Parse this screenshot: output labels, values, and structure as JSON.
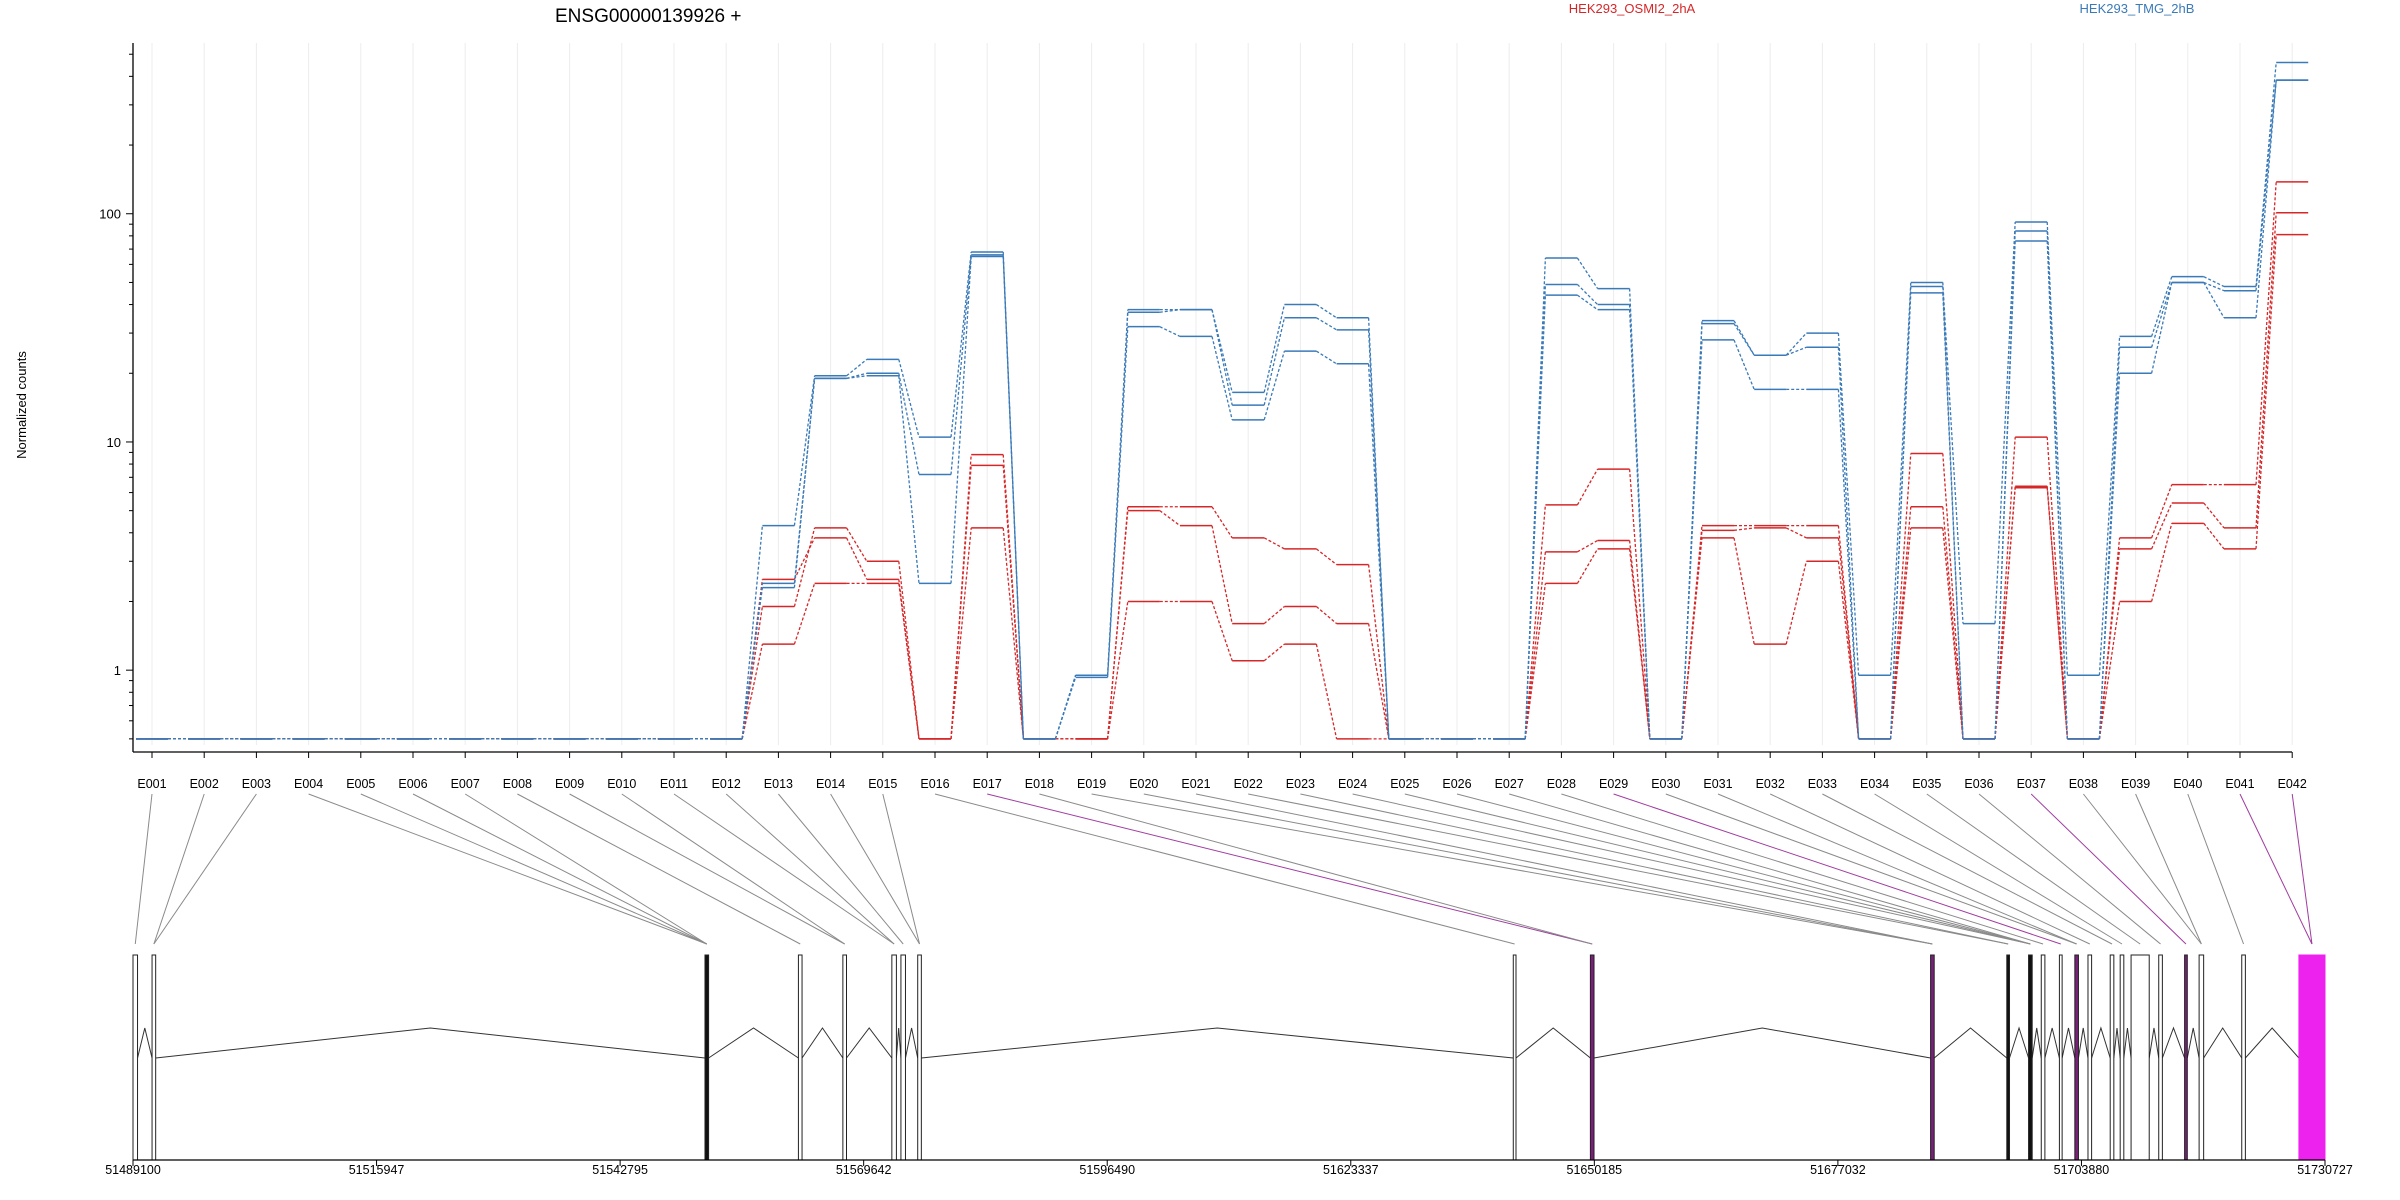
{
  "chart_data": {
    "type": "line",
    "title": "ENSG00000139926 +",
    "xlabel": "",
    "ylabel": "Normalized counts",
    "y_scale": "log",
    "ylim": [
      0.47,
      560
    ],
    "y_ticks": [
      {
        "value": 1,
        "label": "1"
      },
      {
        "value": 10,
        "label": "10"
      },
      {
        "value": 100,
        "label": "100"
      }
    ],
    "grid": "vertical",
    "legend_placement": "top",
    "colors": {
      "HEK293_OSMI2_2hA": "#d62728",
      "HEK293_TMG_2hB": "#3a7ab8",
      "highlight": "#ee22ee",
      "connector_highlight": "#a03ca0"
    },
    "categories": [
      "E001",
      "E002",
      "E003",
      "E004",
      "E005",
      "E006",
      "E007",
      "E008",
      "E009",
      "E010",
      "E011",
      "E012",
      "E013",
      "E014",
      "E015",
      "E016",
      "E017",
      "E018",
      "E019",
      "E020",
      "E021",
      "E022",
      "E023",
      "E024",
      "E025",
      "E026",
      "E027",
      "E028",
      "E029",
      "E030",
      "E031",
      "E032",
      "E033",
      "E034",
      "E035",
      "E036",
      "E037",
      "E038",
      "E039",
      "E040",
      "E041",
      "E042"
    ],
    "series": [
      {
        "name": "HEK293_OSMI2_2hA",
        "group": "HEK293_OSMI2_2hA",
        "values": [
          0.5,
          0.5,
          0.5,
          0.5,
          0.5,
          0.5,
          0.5,
          0.5,
          0.5,
          0.5,
          0.5,
          0.5,
          1.9,
          4.2,
          3.0,
          0.5,
          8.8,
          0.5,
          0.5,
          5.2,
          5.2,
          3.8,
          3.4,
          2.9,
          0.5,
          0.5,
          0.5,
          5.3,
          7.6,
          0.5,
          4.3,
          4.3,
          4.3,
          0.5,
          8.9,
          0.5,
          10.5,
          0.5,
          3.8,
          6.5,
          6.5,
          138
        ]
      },
      {
        "name": "HEK293_OSMI2_2hA",
        "group": "HEK293_OSMI2_2hA",
        "values": [
          0.5,
          0.5,
          0.5,
          0.5,
          0.5,
          0.5,
          0.5,
          0.5,
          0.5,
          0.5,
          0.5,
          0.5,
          2.5,
          3.8,
          2.5,
          0.5,
          7.9,
          0.5,
          0.5,
          5.0,
          4.3,
          1.6,
          1.9,
          1.6,
          0.5,
          0.5,
          0.5,
          3.3,
          3.7,
          0.5,
          4.1,
          4.2,
          3.8,
          0.5,
          5.2,
          0.5,
          6.4,
          0.5,
          3.4,
          5.4,
          4.2,
          101
        ]
      },
      {
        "name": "HEK293_OSMI2_2hA",
        "group": "HEK293_OSMI2_2hA",
        "values": [
          0.5,
          0.5,
          0.5,
          0.5,
          0.5,
          0.5,
          0.5,
          0.5,
          0.5,
          0.5,
          0.5,
          0.5,
          1.3,
          2.4,
          2.4,
          0.5,
          4.2,
          0.5,
          0.5,
          2.0,
          2.0,
          1.1,
          1.3,
          0.5,
          0.5,
          0.5,
          0.5,
          2.4,
          3.4,
          0.5,
          3.8,
          1.3,
          3.0,
          0.5,
          4.2,
          0.5,
          6.3,
          0.5,
          2.0,
          4.4,
          3.4,
          81
        ]
      },
      {
        "name": "HEK293_TMG_2hB",
        "group": "HEK293_TMG_2hB",
        "values": [
          0.5,
          0.5,
          0.5,
          0.5,
          0.5,
          0.5,
          0.5,
          0.5,
          0.5,
          0.5,
          0.5,
          0.5,
          4.3,
          19.5,
          23.0,
          10.5,
          68,
          0.5,
          0.95,
          38,
          38,
          16.5,
          40,
          35,
          0.5,
          0.5,
          0.5,
          64,
          47,
          0.5,
          34,
          24,
          30,
          0.95,
          50,
          1.6,
          92,
          0.95,
          29,
          53,
          48,
          460
        ]
      },
      {
        "name": "HEK293_TMG_2hB",
        "group": "HEK293_TMG_2hB",
        "values": [
          0.5,
          0.5,
          0.5,
          0.5,
          0.5,
          0.5,
          0.5,
          0.5,
          0.5,
          0.5,
          0.5,
          0.5,
          2.4,
          19.0,
          20.0,
          7.2,
          66,
          0.5,
          0.95,
          37,
          38,
          14.5,
          35,
          31,
          0.5,
          0.5,
          0.5,
          49,
          40,
          0.5,
          33,
          24,
          26,
          0.5,
          48,
          0.5,
          84,
          0.5,
          26,
          50,
          46,
          385
        ]
      },
      {
        "name": "HEK293_TMG_2hB",
        "group": "HEK293_TMG_2hB",
        "values": [
          0.5,
          0.5,
          0.5,
          0.5,
          0.5,
          0.5,
          0.5,
          0.5,
          0.5,
          0.5,
          0.5,
          0.5,
          2.3,
          19.0,
          19.5,
          2.4,
          65,
          0.5,
          0.93,
          32,
          29,
          12.5,
          25,
          22,
          0.5,
          0.5,
          0.5,
          44,
          38,
          0.5,
          28,
          17,
          17,
          0.5,
          45,
          0.5,
          76,
          0.5,
          20,
          50,
          35,
          385
        ]
      }
    ],
    "legend": [
      {
        "label": "HEK293_OSMI2_2hA"
      },
      {
        "label": "HEK293_TMG_2hB"
      }
    ],
    "exon_highlight": [
      false,
      false,
      false,
      false,
      false,
      false,
      false,
      false,
      false,
      false,
      false,
      false,
      false,
      false,
      false,
      false,
      true,
      false,
      false,
      false,
      false,
      false,
      false,
      false,
      false,
      false,
      false,
      false,
      true,
      false,
      false,
      false,
      false,
      false,
      false,
      false,
      true,
      false,
      false,
      false,
      true,
      true
    ],
    "gene_coordinate_ticks": [
      "51489100",
      "51515947",
      "51542795",
      "51569642",
      "51596490",
      "51623337",
      "51650185",
      "51677032",
      "51703880",
      "51730727"
    ],
    "gene_range": [
      51489100,
      51730727
    ],
    "gene_model_exons": [
      [
        51489100,
        51489600
      ],
      [
        51491200,
        51491600
      ],
      [
        51552150,
        51552550
      ],
      [
        51562450,
        51562850
      ],
      [
        51567350,
        51567750
      ],
      [
        51572750,
        51573250
      ],
      [
        51573750,
        51574250
      ],
      [
        51575600,
        51576000
      ],
      [
        51641250,
        51641550
      ],
      [
        51649750,
        51650150
      ],
      [
        51687250,
        51687650
      ],
      [
        51695650,
        51695950
      ],
      [
        51698050,
        51698450
      ],
      [
        51699450,
        51699850
      ],
      [
        51701450,
        51701750
      ],
      [
        51703150,
        51703550
      ],
      [
        51704600,
        51705000
      ],
      [
        51707050,
        51707450
      ],
      [
        51708150,
        51708550
      ],
      [
        51709350,
        51711350
      ],
      [
        51712400,
        51712800
      ],
      [
        51715250,
        51715550
      ],
      [
        51716850,
        51717350
      ],
      [
        51721550,
        51721950
      ],
      [
        51727850,
        51730727
      ]
    ],
    "gene_model_exon_fill": [
      "white",
      "white",
      "black",
      "white",
      "white",
      "white",
      "white",
      "white",
      "white",
      "purple",
      "purple",
      "black",
      "black",
      "white",
      "white",
      "purple",
      "white",
      "white",
      "white",
      "white",
      "white",
      "purple",
      "white",
      "white",
      "magenta"
    ],
    "exon_to_gene_map": [
      0,
      1,
      1,
      2,
      2,
      2,
      2,
      3,
      4,
      4,
      5,
      5,
      6,
      7,
      7,
      8,
      9,
      9,
      10,
      10,
      10,
      11,
      11,
      12,
      12,
      12,
      12,
      13,
      14,
      15,
      15,
      16,
      17,
      18,
      19,
      20,
      21,
      22,
      22,
      23,
      24,
      24
    ]
  }
}
